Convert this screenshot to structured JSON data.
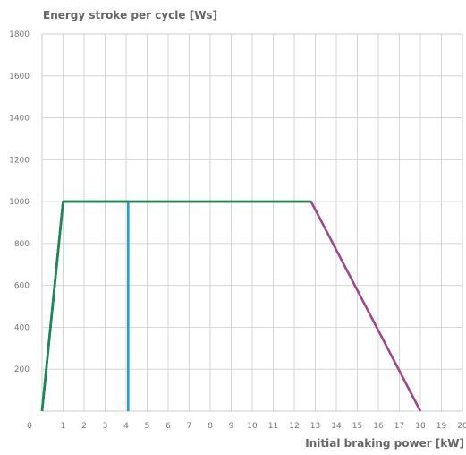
{
  "chart_data": {
    "type": "line",
    "ylabel": "Energy stroke per cycle [Ws]",
    "xlabel": "Initial braking power [kW]",
    "xlim": [
      0,
      20
    ],
    "ylim": [
      0,
      1800
    ],
    "x_ticks": [
      "0",
      "1",
      "2",
      "3",
      "4",
      "5",
      "6",
      "7",
      "8",
      "9",
      "10",
      "11",
      "12",
      "13",
      "14",
      "15",
      "16",
      "17",
      "18",
      "19",
      "20"
    ],
    "y_ticks": [
      "200",
      "400",
      "600",
      "800",
      "1000",
      "1200",
      "1400",
      "1600",
      "1800"
    ],
    "grid": true,
    "series": [
      {
        "color": "#a2458f",
        "points": [
          [
            0,
            0
          ],
          [
            1,
            1000
          ],
          [
            12.8,
            1000
          ],
          [
            18,
            0
          ]
        ]
      },
      {
        "color": "#1fa3d1",
        "points": [
          [
            0,
            0
          ],
          [
            1,
            1000
          ],
          [
            4.1,
            1000
          ],
          [
            4.1,
            0
          ]
        ]
      },
      {
        "color": "#1b8a4e",
        "points": [
          [
            0,
            0
          ],
          [
            1,
            1000
          ],
          [
            12.8,
            1000
          ]
        ]
      }
    ]
  }
}
